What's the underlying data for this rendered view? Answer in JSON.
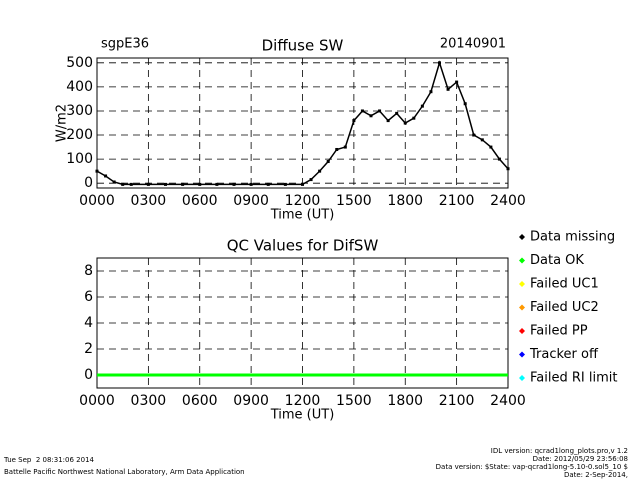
{
  "chart_data": [
    {
      "type": "line",
      "title": "Diffuse SW",
      "left_label": "sgpE36",
      "right_label": "20140901",
      "y_label": "W/m2",
      "x_label": "Time (UT)",
      "color": "#000000",
      "grid": true,
      "xlim": [
        0,
        24
      ],
      "ylim": [
        -20,
        520
      ],
      "xticks": [
        {
          "value": 0,
          "label": "0000"
        },
        {
          "value": 3,
          "label": "0300"
        },
        {
          "value": 6,
          "label": "0600"
        },
        {
          "value": 9,
          "label": "0900"
        },
        {
          "value": 12,
          "label": "1200"
        },
        {
          "value": 15,
          "label": "1500"
        },
        {
          "value": 18,
          "label": "1800"
        },
        {
          "value": 21,
          "label": "2100"
        },
        {
          "value": 24,
          "label": "2400"
        }
      ],
      "yticks": [
        0,
        100,
        200,
        300,
        400,
        500
      ],
      "x": [
        0,
        0.5,
        1,
        1.5,
        2,
        3,
        4,
        5,
        6,
        7,
        8,
        9,
        10,
        11,
        12,
        12.5,
        13,
        13.5,
        14,
        14.5,
        15,
        15.5,
        16,
        16.5,
        17,
        17.5,
        18,
        18.5,
        19,
        19.5,
        20,
        20.5,
        21,
        21.5,
        22,
        22.5,
        23,
        23.5,
        24
      ],
      "values": [
        50,
        30,
        5,
        -5,
        -5,
        -5,
        -5,
        -5,
        -5,
        -5,
        -5,
        -5,
        -5,
        -5,
        -5,
        15,
        50,
        90,
        140,
        150,
        260,
        300,
        280,
        300,
        260,
        290,
        250,
        270,
        320,
        380,
        500,
        390,
        420,
        330,
        200,
        180,
        150,
        100,
        60
      ]
    },
    {
      "type": "line",
      "title": "QC Values for DifSW",
      "x_label": "Time (UT)",
      "grid": true,
      "xlim": [
        0,
        24
      ],
      "ylim": [
        -1,
        9
      ],
      "xticks": [
        {
          "value": 0,
          "label": "0000"
        },
        {
          "value": 3,
          "label": "0300"
        },
        {
          "value": 6,
          "label": "0600"
        },
        {
          "value": 9,
          "label": "0900"
        },
        {
          "value": 12,
          "label": "1200"
        },
        {
          "value": 15,
          "label": "1500"
        },
        {
          "value": 18,
          "label": "1800"
        },
        {
          "value": 21,
          "label": "2100"
        },
        {
          "value": 24,
          "label": "2400"
        }
      ],
      "yticks": [
        0,
        2,
        4,
        6,
        8
      ],
      "series": [
        {
          "name": "Data OK",
          "color": "#00ff00",
          "x": [
            0,
            24
          ],
          "values": [
            0,
            0
          ]
        }
      ],
      "legend": [
        {
          "name": "Data missing",
          "color": "#000000"
        },
        {
          "name": "Data OK",
          "color": "#00ff00"
        },
        {
          "name": "Failed UC1",
          "color": "#ffff00"
        },
        {
          "name": "Failed UC2",
          "color": "#ff9900"
        },
        {
          "name": "Failed PP",
          "color": "#ff0000"
        },
        {
          "name": "Tracker off",
          "color": "#0000ff"
        },
        {
          "name": "Failed RI limit",
          "color": "#00ffff"
        }
      ]
    }
  ],
  "footer": {
    "timestamp": "Tue Sep  2 08:31:06 2014",
    "organization": "Battelle Pacific Northwest National Laboratory, Arm Data Application",
    "idl_version": "IDL version: qcrad1long_plots.pro,v 1.2",
    "idl_date": "Date: 2012/05/29 23:56:08",
    "data_version": "Data version: $State: vap-qcrad1long-5.10-0.sol5_10 $",
    "data_date": "Date: 2-Sep-2014,"
  }
}
